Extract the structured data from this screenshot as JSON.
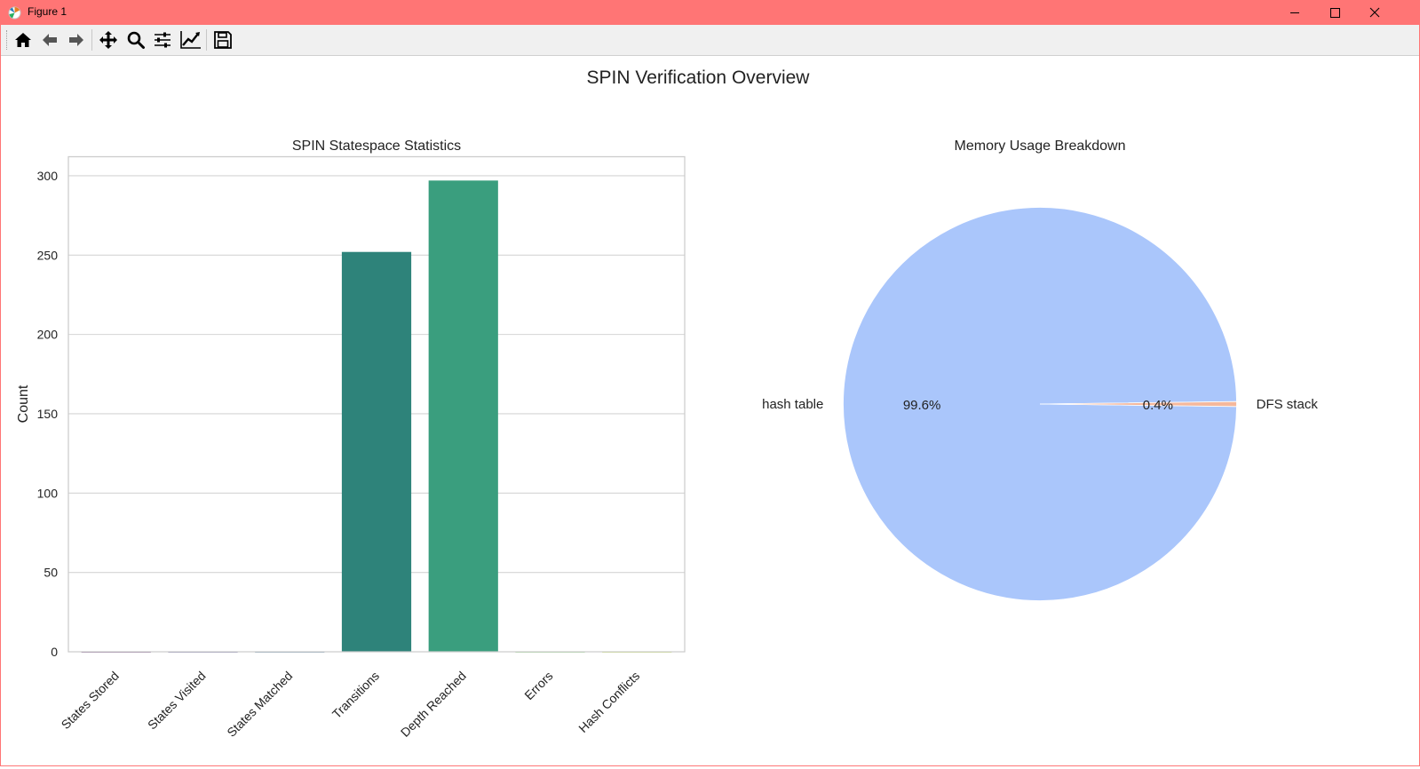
{
  "window": {
    "title": "Figure 1",
    "controls": [
      "minimize",
      "maximize",
      "close"
    ]
  },
  "toolbar": {
    "buttons": [
      {
        "name": "home",
        "icon": "home-icon"
      },
      {
        "name": "back",
        "icon": "arrow-left-icon"
      },
      {
        "name": "forward",
        "icon": "arrow-right-icon"
      },
      {
        "name": "pan",
        "icon": "move-icon"
      },
      {
        "name": "zoom",
        "icon": "magnifier-icon"
      },
      {
        "name": "configure-subplots",
        "icon": "sliders-icon"
      },
      {
        "name": "edit-axis",
        "icon": "line-chart-icon"
      },
      {
        "name": "save",
        "icon": "floppy-disk-icon"
      }
    ]
  },
  "figure": {
    "suptitle": "SPIN Verification Overview"
  },
  "chart_data": [
    {
      "type": "bar",
      "title": "SPIN Statespace Statistics",
      "xlabel": "",
      "ylabel": "Count",
      "categories": [
        "States Stored",
        "States Visited",
        "States Matched",
        "Transitions",
        "Depth Reached",
        "Errors",
        "Hash Conflicts"
      ],
      "values": [
        0,
        0,
        0,
        252,
        297,
        0,
        0
      ],
      "colors": [
        "#440154",
        "#443983",
        "#31688e",
        "#2e837a",
        "#3a9e7e",
        "#6ccd5a",
        "#b8de29"
      ],
      "ylim": [
        0,
        312
      ],
      "yticks": [
        0,
        50,
        100,
        150,
        200,
        250,
        300
      ],
      "grid": true
    },
    {
      "type": "pie",
      "title": "Memory Usage Breakdown",
      "labels": [
        "hash table",
        "DFS stack"
      ],
      "values": [
        99.6,
        0.4
      ],
      "pct_labels": [
        "99.6%",
        "0.4%"
      ],
      "colors": [
        "#aac6fb",
        "#f5b89c"
      ]
    }
  ]
}
